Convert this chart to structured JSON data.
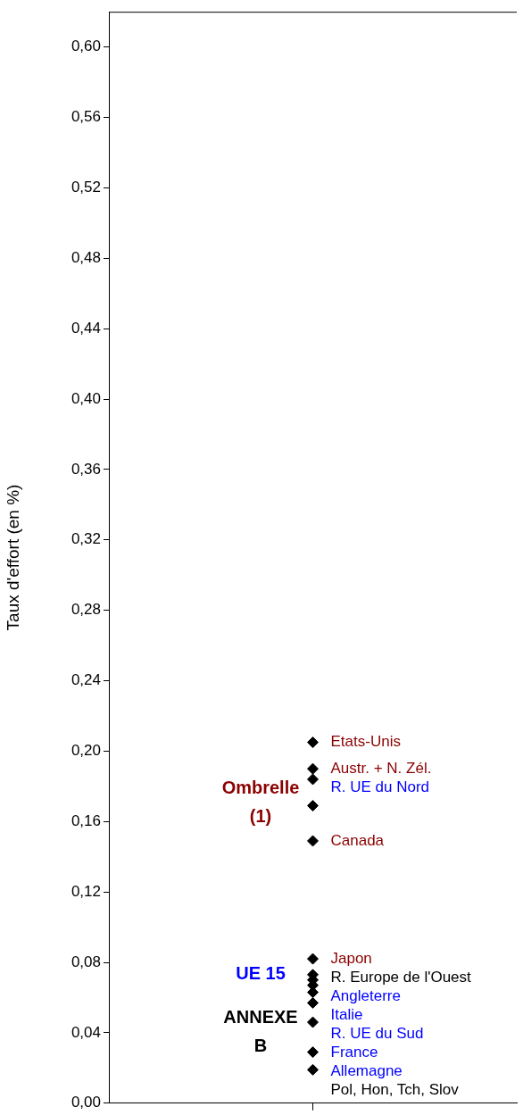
{
  "chart_data": {
    "type": "scatter",
    "ylabel": "Taux d'effort (en %)",
    "categories": [
      null
    ],
    "series": [
      {
        "color": "#000000",
        "values": [
          0.205
        ],
        "value_labels": [
          "Etats-Unis"
        ]
      },
      {
        "color": "#000000",
        "values": [
          0.19
        ],
        "value_labels": [
          "Austr. + N. Zél."
        ]
      },
      {
        "color": "#000000",
        "values": [
          0.184
        ],
        "value_labels": [
          "R. UE du Nord"
        ]
      },
      {
        "color": "#000000",
        "values": [
          0.169
        ]
      },
      {
        "color": "#000000",
        "values": [
          0.149
        ],
        "value_labels": [
          "Canada"
        ]
      },
      {
        "color": "#000000",
        "values": [
          0.082
        ],
        "value_labels": [
          "Japon"
        ]
      },
      {
        "color": "#000000",
        "values": [
          0.073
        ],
        "value_labels": [
          "R. Europe de l'Ouest"
        ]
      },
      {
        "color": "#000000",
        "values": [
          0.07
        ],
        "value_labels": [
          "Angleterre"
        ]
      },
      {
        "color": "#000000",
        "values": [
          0.067
        ],
        "value_labels": [
          "Italie"
        ]
      },
      {
        "color": "#000000",
        "values": [
          0.063
        ]
      },
      {
        "color": "#000000",
        "values": [
          0.057
        ],
        "value_labels": [
          "R. UE du Sud"
        ]
      },
      {
        "color": "#000000",
        "values": [
          0.046
        ],
        "value_labels": [
          "France"
        ]
      },
      {
        "color": "#000000",
        "values": [
          0.029
        ],
        "value_labels": [
          "Allemagne"
        ]
      },
      {
        "color": "#000000",
        "values": [
          0.019
        ],
        "value_labels": [
          "Pol, Hon, Tch, Slov"
        ]
      }
    ],
    "marker": "diamond",
    "ylim": [
      0,
      0.62
    ],
    "yticks": [
      {
        "value": 0,
        "label": "0,00"
      },
      {
        "value": 0.04,
        "label": "0,04"
      },
      {
        "value": 0.08,
        "label": "0,08"
      },
      {
        "value": 0.12,
        "label": "0,12"
      },
      {
        "value": 0.16,
        "label": "0,16"
      },
      {
        "value": 0.2,
        "label": "0,20"
      },
      {
        "value": 0.24,
        "label": "0,24"
      },
      {
        "value": 0.28,
        "label": "0,28"
      },
      {
        "value": 0.32,
        "label": "0,32"
      },
      {
        "value": 0.36,
        "label": "0,36"
      },
      {
        "value": 0.4,
        "label": "0,40"
      },
      {
        "value": 0.44,
        "label": "0,44"
      },
      {
        "value": 0.48,
        "label": "0,48"
      },
      {
        "value": 0.52,
        "label": "0,52"
      },
      {
        "value": 0.56,
        "label": "0,56"
      },
      {
        "value": 0.6,
        "label": "0,60"
      }
    ],
    "grid": false,
    "legend": false,
    "annotations": [
      "Ombrelle (1)",
      "UE 15",
      "ANNEXE B"
    ]
  }
}
